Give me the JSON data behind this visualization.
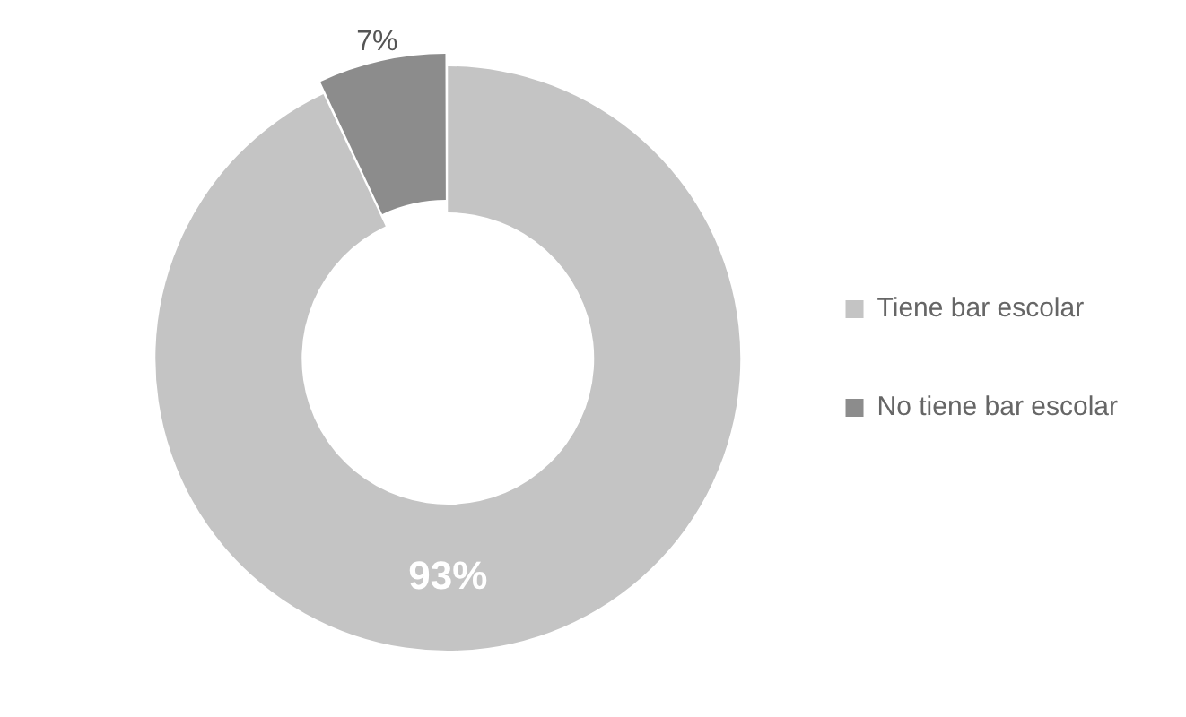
{
  "chart_data": {
    "type": "donut",
    "categories": [
      "Tiene bar escolar",
      "No tiene bar escolar"
    ],
    "values": [
      93,
      7
    ],
    "colors": [
      "#c4c4c4",
      "#8c8c8c"
    ],
    "value_labels": [
      "93%",
      "7%"
    ],
    "legend": "right"
  }
}
